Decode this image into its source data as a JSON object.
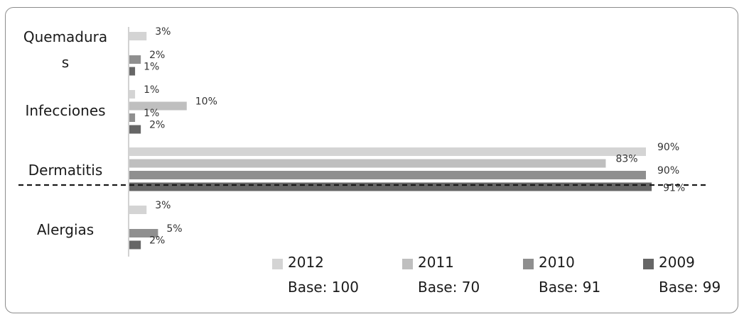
{
  "chart_data": {
    "type": "bar",
    "orientation": "horizontal",
    "categories": [
      "Quemaduras",
      "Infecciones",
      "Dermatitis",
      "Alergias"
    ],
    "category_display": [
      "Quemadura\ns",
      "Infecciones",
      "Dermatitis",
      "Alergias"
    ],
    "series": [
      {
        "name": "2012",
        "base": "Base: 100",
        "color": "#d4d4d4",
        "values": [
          3,
          1,
          90,
          3
        ]
      },
      {
        "name": "2011",
        "base": "Base: 70",
        "color": "#bfbfbf",
        "values": [
          0,
          10,
          83,
          0
        ]
      },
      {
        "name": "2010",
        "base": "Base: 91",
        "color": "#8f8f8f",
        "values": [
          2,
          1,
          90,
          5
        ]
      },
      {
        "name": "2009",
        "base": "Base: 99",
        "color": "#666666",
        "values": [
          1,
          2,
          91,
          2
        ]
      }
    ],
    "value_labels": [
      [
        "3%",
        "1%",
        "90%",
        "3%"
      ],
      [
        "",
        "10%",
        "83%",
        ""
      ],
      [
        "2%",
        "1%",
        "90%",
        "5%"
      ],
      [
        "1%",
        "2%",
        "91%",
        "2%"
      ]
    ],
    "xlim": [
      0,
      100
    ],
    "grid": false,
    "legend_position": "bottom-right",
    "reference_line": "dashed horizontal line between Dermatitis and Alergias"
  }
}
